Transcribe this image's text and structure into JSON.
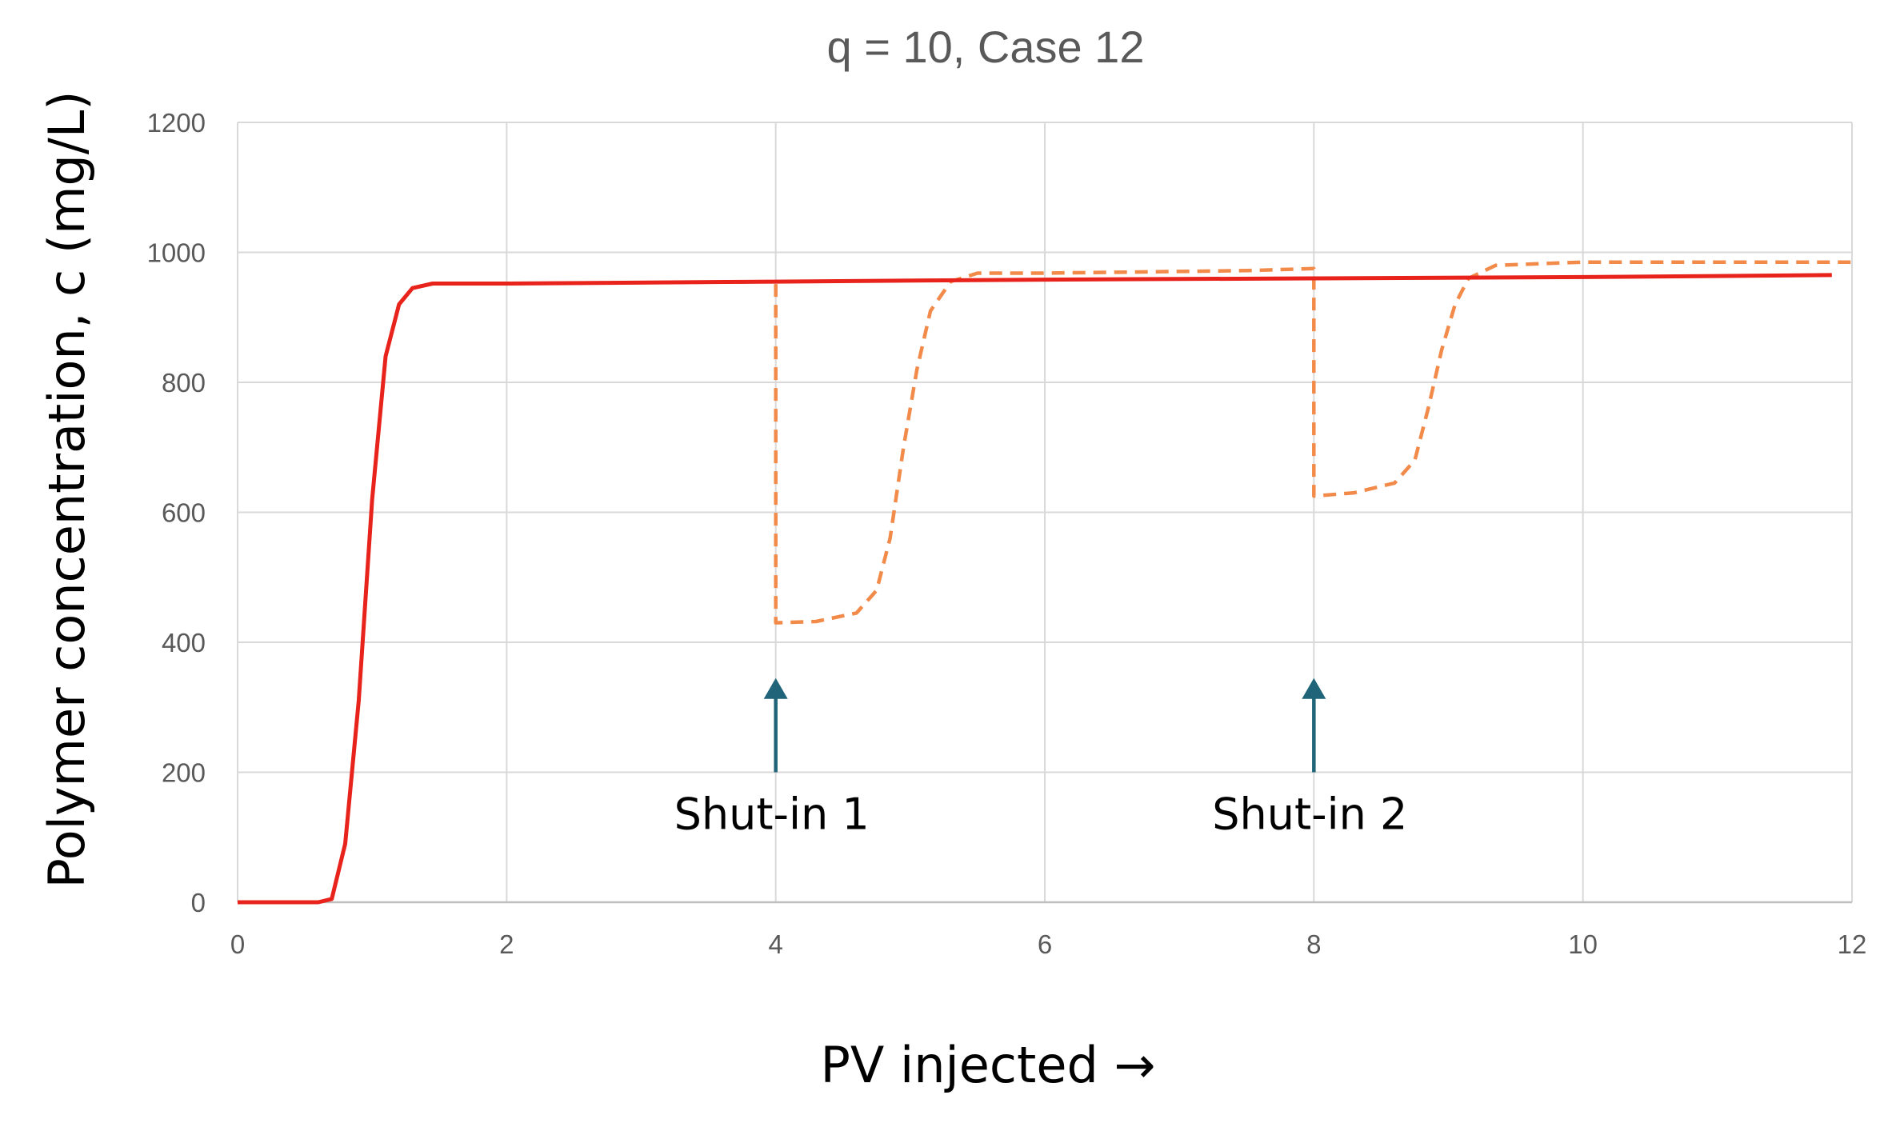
{
  "chart_data": {
    "type": "line",
    "title": "q = 10,  Case 12",
    "xlabel": "PV injected →",
    "ylabel": "Polymer concentration, c (mg/L)",
    "xlim": [
      0,
      12
    ],
    "ylim": [
      0,
      1200
    ],
    "x_ticks": [
      0,
      2,
      4,
      6,
      8,
      10,
      12
    ],
    "y_ticks": [
      0,
      200,
      400,
      600,
      800,
      1000,
      1200
    ],
    "grid": true,
    "legend": "none",
    "series": [
      {
        "style": "solid",
        "color": "#e8231b",
        "points": [
          [
            0,
            0
          ],
          [
            0.6,
            0
          ],
          [
            0.7,
            5
          ],
          [
            0.8,
            90
          ],
          [
            0.9,
            310
          ],
          [
            1.0,
            620
          ],
          [
            1.1,
            840
          ],
          [
            1.2,
            920
          ],
          [
            1.3,
            945
          ],
          [
            1.45,
            952
          ],
          [
            2,
            952
          ],
          [
            4,
            955
          ],
          [
            6,
            958
          ],
          [
            8,
            960
          ],
          [
            10,
            962
          ],
          [
            11.85,
            965
          ]
        ]
      },
      {
        "style": "dashed",
        "color": "#f28a4a",
        "points": [
          [
            0,
            0
          ],
          [
            0.6,
            0
          ],
          [
            0.7,
            5
          ],
          [
            0.8,
            90
          ],
          [
            0.9,
            310
          ],
          [
            1.0,
            620
          ],
          [
            1.1,
            840
          ],
          [
            1.2,
            920
          ],
          [
            1.3,
            945
          ],
          [
            1.45,
            952
          ],
          [
            2,
            952
          ],
          [
            4,
            955
          ],
          [
            4.0,
            430
          ],
          [
            4.3,
            432
          ],
          [
            4.6,
            445
          ],
          [
            4.75,
            480
          ],
          [
            4.85,
            560
          ],
          [
            4.95,
            700
          ],
          [
            5.05,
            820
          ],
          [
            5.15,
            910
          ],
          [
            5.3,
            955
          ],
          [
            5.5,
            968
          ],
          [
            6,
            968
          ],
          [
            7.5,
            972
          ],
          [
            8,
            975
          ],
          [
            8.0,
            625
          ],
          [
            8.3,
            630
          ],
          [
            8.6,
            645
          ],
          [
            8.75,
            680
          ],
          [
            8.85,
            760
          ],
          [
            8.95,
            850
          ],
          [
            9.05,
            920
          ],
          [
            9.15,
            960
          ],
          [
            9.35,
            980
          ],
          [
            10,
            985
          ],
          [
            12,
            985
          ]
        ]
      }
    ],
    "annotations": [
      {
        "text": "Shut-in 1",
        "x": 4,
        "arrow_from_y": 200,
        "arrow_to_y": 345
      },
      {
        "text": "Shut-in 2",
        "x": 8,
        "arrow_from_y": 200,
        "arrow_to_y": 345
      }
    ],
    "arrow_color": "#1f6478"
  }
}
